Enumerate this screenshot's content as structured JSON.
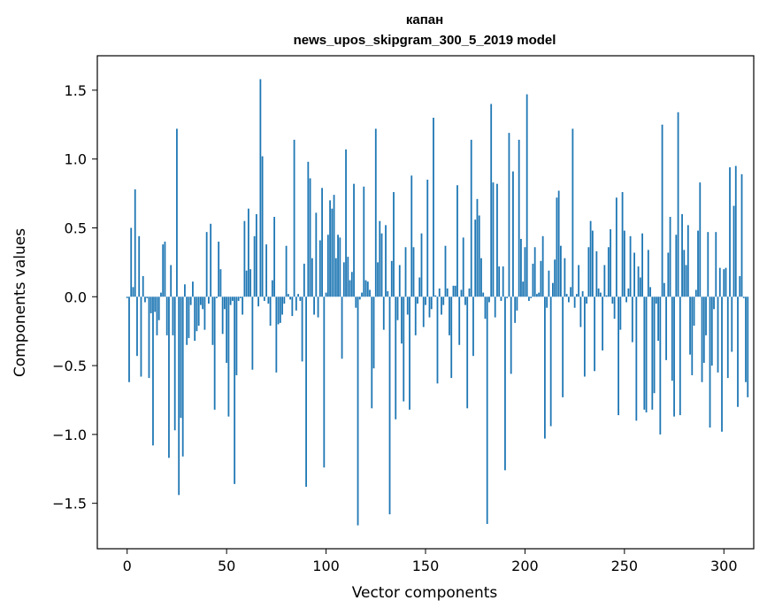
{
  "chart_data": {
    "type": "bar",
    "title": "капан",
    "subtitle": "news_upos_skipgram_300_5_2019 model",
    "xlabel": "Vector components",
    "ylabel": "Components values",
    "xlim": [
      -15,
      315
    ],
    "ylim": [
      -1.83,
      1.75
    ],
    "x_ticks": [
      0,
      50,
      100,
      150,
      200,
      250,
      300
    ],
    "x_tick_labels": [
      "0",
      "50",
      "100",
      "150",
      "200",
      "250",
      "300"
    ],
    "y_ticks": [
      -1.5,
      -1.0,
      -0.5,
      0.0,
      0.5,
      1.0,
      1.5
    ],
    "y_tick_labels": [
      "−1.5",
      "−1.0",
      "−0.5",
      "0.0",
      "0.5",
      "1.0",
      "1.5"
    ],
    "grid": false,
    "bar_color": "#1f77b4",
    "values": [
      -0.01,
      -0.62,
      0.5,
      0.07,
      0.78,
      -0.43,
      0.44,
      -0.58,
      0.15,
      -0.04,
      -0.01,
      -0.59,
      -0.12,
      -1.08,
      -0.11,
      -0.28,
      -0.17,
      0.03,
      0.38,
      0.4,
      -0.28,
      -1.17,
      0.23,
      -0.28,
      -0.97,
      1.22,
      -1.44,
      -0.88,
      -1.16,
      0.09,
      -0.35,
      -0.3,
      -0.06,
      0.11,
      -0.32,
      -0.25,
      -0.21,
      -0.06,
      -0.09,
      -0.24,
      0.47,
      -0.05,
      0.53,
      -0.35,
      -0.82,
      -0.01,
      0.4,
      0.2,
      -0.27,
      -0.09,
      -0.48,
      -0.87,
      -0.06,
      -0.03,
      -1.36,
      -0.57,
      -0.03,
      -0.01,
      -0.13,
      0.55,
      0.19,
      0.64,
      0.2,
      -0.53,
      0.44,
      0.6,
      -0.07,
      1.58,
      1.02,
      -0.03,
      0.38,
      -0.05,
      -0.21,
      0.12,
      0.58,
      -0.55,
      -0.2,
      -0.19,
      -0.13,
      -0.05,
      0.37,
      0.02,
      -0.02,
      -0.14,
      1.14,
      -0.1,
      0.02,
      -0.03,
      -0.47,
      0.24,
      -1.38,
      0.98,
      0.86,
      0.28,
      -0.13,
      0.61,
      -0.15,
      0.41,
      0.79,
      -1.24,
      0.03,
      0.45,
      0.7,
      0.64,
      0.74,
      0.28,
      0.45,
      0.43,
      -0.45,
      0.25,
      1.07,
      0.29,
      0.12,
      0.18,
      0.82,
      -0.08,
      -1.66,
      -0.02,
      0.03,
      0.8,
      0.12,
      0.11,
      0.05,
      -0.81,
      -0.52,
      1.22,
      0.25,
      0.55,
      0.46,
      -0.24,
      0.52,
      0.04,
      -1.58,
      0.26,
      0.76,
      -0.89,
      -0.17,
      0.23,
      -0.34,
      -0.76,
      0.36,
      -0.13,
      -0.82,
      0.88,
      0.36,
      -0.28,
      -0.05,
      0.14,
      0.46,
      -0.22,
      -0.06,
      0.85,
      -0.15,
      -0.09,
      1.3,
      0.01,
      -0.63,
      0.06,
      -0.13,
      -0.06,
      0.37,
      0.06,
      -0.28,
      -0.59,
      0.08,
      0.08,
      0.81,
      -0.35,
      0.05,
      0.43,
      -0.06,
      -0.81,
      0.06,
      1.14,
      -0.43,
      0.56,
      0.71,
      0.59,
      0.28,
      0.03,
      -0.16,
      -1.65,
      -0.04,
      1.4,
      0.83,
      -0.15,
      0.82,
      0.22,
      -0.03,
      0.22,
      -1.26,
      -0.01,
      1.19,
      -0.56,
      0.91,
      -0.19,
      -0.1,
      1.14,
      0.42,
      0.11,
      0.36,
      1.47,
      -0.03,
      -0.01,
      0.24,
      0.36,
      0.02,
      0.03,
      0.26,
      0.44,
      -1.03,
      -0.08,
      0.19,
      -0.94,
      0.1,
      0.27,
      0.72,
      0.77,
      0.37,
      -0.73,
      0.28,
      0.02,
      -0.04,
      0.07,
      1.22,
      -0.08,
      0.02,
      0.23,
      -0.22,
      0.04,
      -0.58,
      -0.05,
      0.36,
      0.55,
      0.48,
      -0.54,
      0.33,
      0.06,
      0.03,
      -0.39,
      0.23,
      0.01,
      0.36,
      0.49,
      -0.05,
      -0.16,
      0.72,
      -0.86,
      -0.24,
      0.76,
      0.48,
      -0.04,
      0.06,
      0.44,
      -0.33,
      0.32,
      -0.9,
      0.22,
      0.14,
      0.46,
      -0.82,
      -0.84,
      0.34,
      0.07,
      -0.82,
      -0.7,
      -0.05,
      -0.32,
      -1.0,
      1.25,
      0.1,
      -0.46,
      0.32,
      0.58,
      -0.61,
      -0.87,
      0.45,
      1.34,
      -0.86,
      0.6,
      0.34,
      0.23,
      0.52,
      -0.42,
      -0.57,
      -0.21,
      0.05,
      0.48,
      0.83,
      -0.62,
      -0.48,
      -0.28,
      0.47,
      -0.95,
      -0.5,
      -0.09,
      0.47,
      -0.55,
      0.21,
      -0.98,
      0.2,
      0.21,
      -0.59,
      0.94,
      -0.4,
      0.66,
      0.95,
      -0.8,
      0.15,
      0.89,
      -0.01,
      -0.62,
      -0.73
    ]
  }
}
